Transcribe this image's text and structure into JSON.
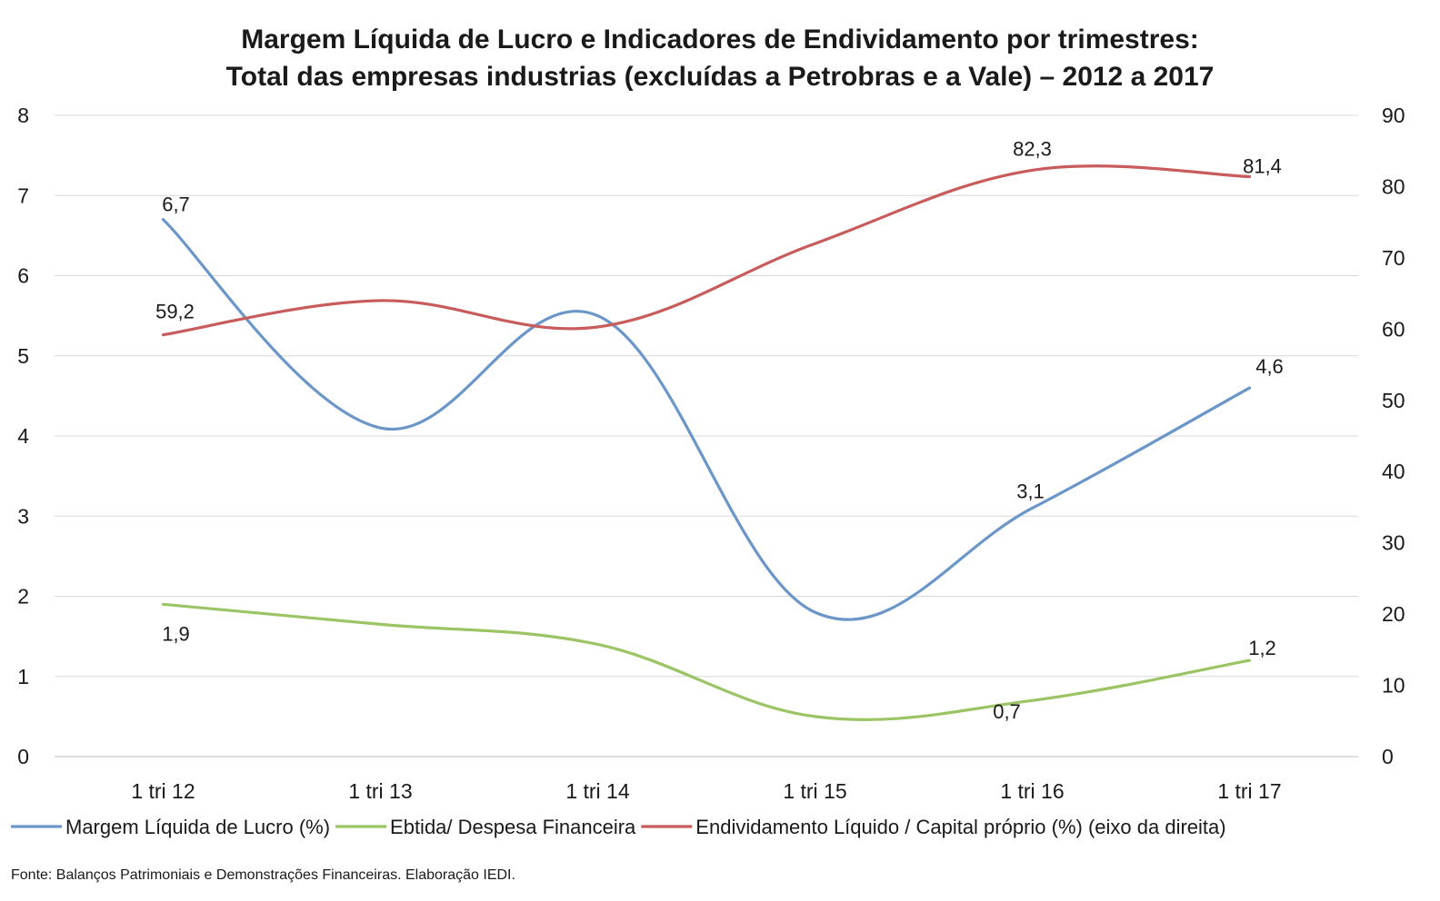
{
  "chart_data": {
    "type": "line",
    "title_lines": [
      "Margem Líquida de Lucro e Indicadores de Endividamento por trimestres:",
      "Total das empresas industrias (excluídas a Petrobras e a Vale) – 2012 a 2017"
    ],
    "categories": [
      "1 tri 12",
      "1 tri 13",
      "1 tri 14",
      "1 tri 15",
      "1 tri 16",
      "1 tri 17"
    ],
    "left_axis": {
      "min": 0,
      "max": 8,
      "ticks": [
        "0",
        "1",
        "2",
        "3",
        "4",
        "5",
        "6",
        "7",
        "8"
      ]
    },
    "right_axis": {
      "min": 0,
      "max": 90,
      "ticks": [
        "0",
        "10",
        "20",
        "30",
        "40",
        "50",
        "60",
        "70",
        "80",
        "90"
      ]
    },
    "grid": true,
    "legend_position": "bottom",
    "series": [
      {
        "name": "Margem Líquida de Lucro (%)",
        "axis": "left",
        "color": "#6b96c8",
        "values": [
          6.7,
          4.1,
          5.5,
          1.8,
          3.1,
          4.6
        ],
        "labels": [
          {
            "index": 0,
            "text": "6,7"
          },
          {
            "index": 4,
            "text": "3,1"
          },
          {
            "index": 5,
            "text": "4,6"
          }
        ]
      },
      {
        "name": "Ebtida/ Despesa Financeira",
        "axis": "left",
        "color": "#9bc465",
        "values": [
          1.9,
          1.65,
          1.4,
          0.5,
          0.7,
          1.2
        ],
        "labels": [
          {
            "index": 0,
            "text": "1,9"
          },
          {
            "index": 4,
            "text": "0,7"
          },
          {
            "index": 5,
            "text": "1,2"
          }
        ]
      },
      {
        "name": "Endividamento Líquido / Capital próprio (%) (eixo da direita)",
        "axis": "right",
        "color": "#c85b5b",
        "values": [
          59.2,
          64,
          60.3,
          72,
          82.3,
          81.4
        ],
        "labels": [
          {
            "index": 0,
            "text": "59,2"
          },
          {
            "index": 4,
            "text": "82,3"
          },
          {
            "index": 5,
            "text": "81,4"
          }
        ]
      }
    ]
  },
  "footer": {
    "source": "Fonte: Balanços Patrimoniais e Demonstrações Financeiras. Elaboração IEDI."
  }
}
